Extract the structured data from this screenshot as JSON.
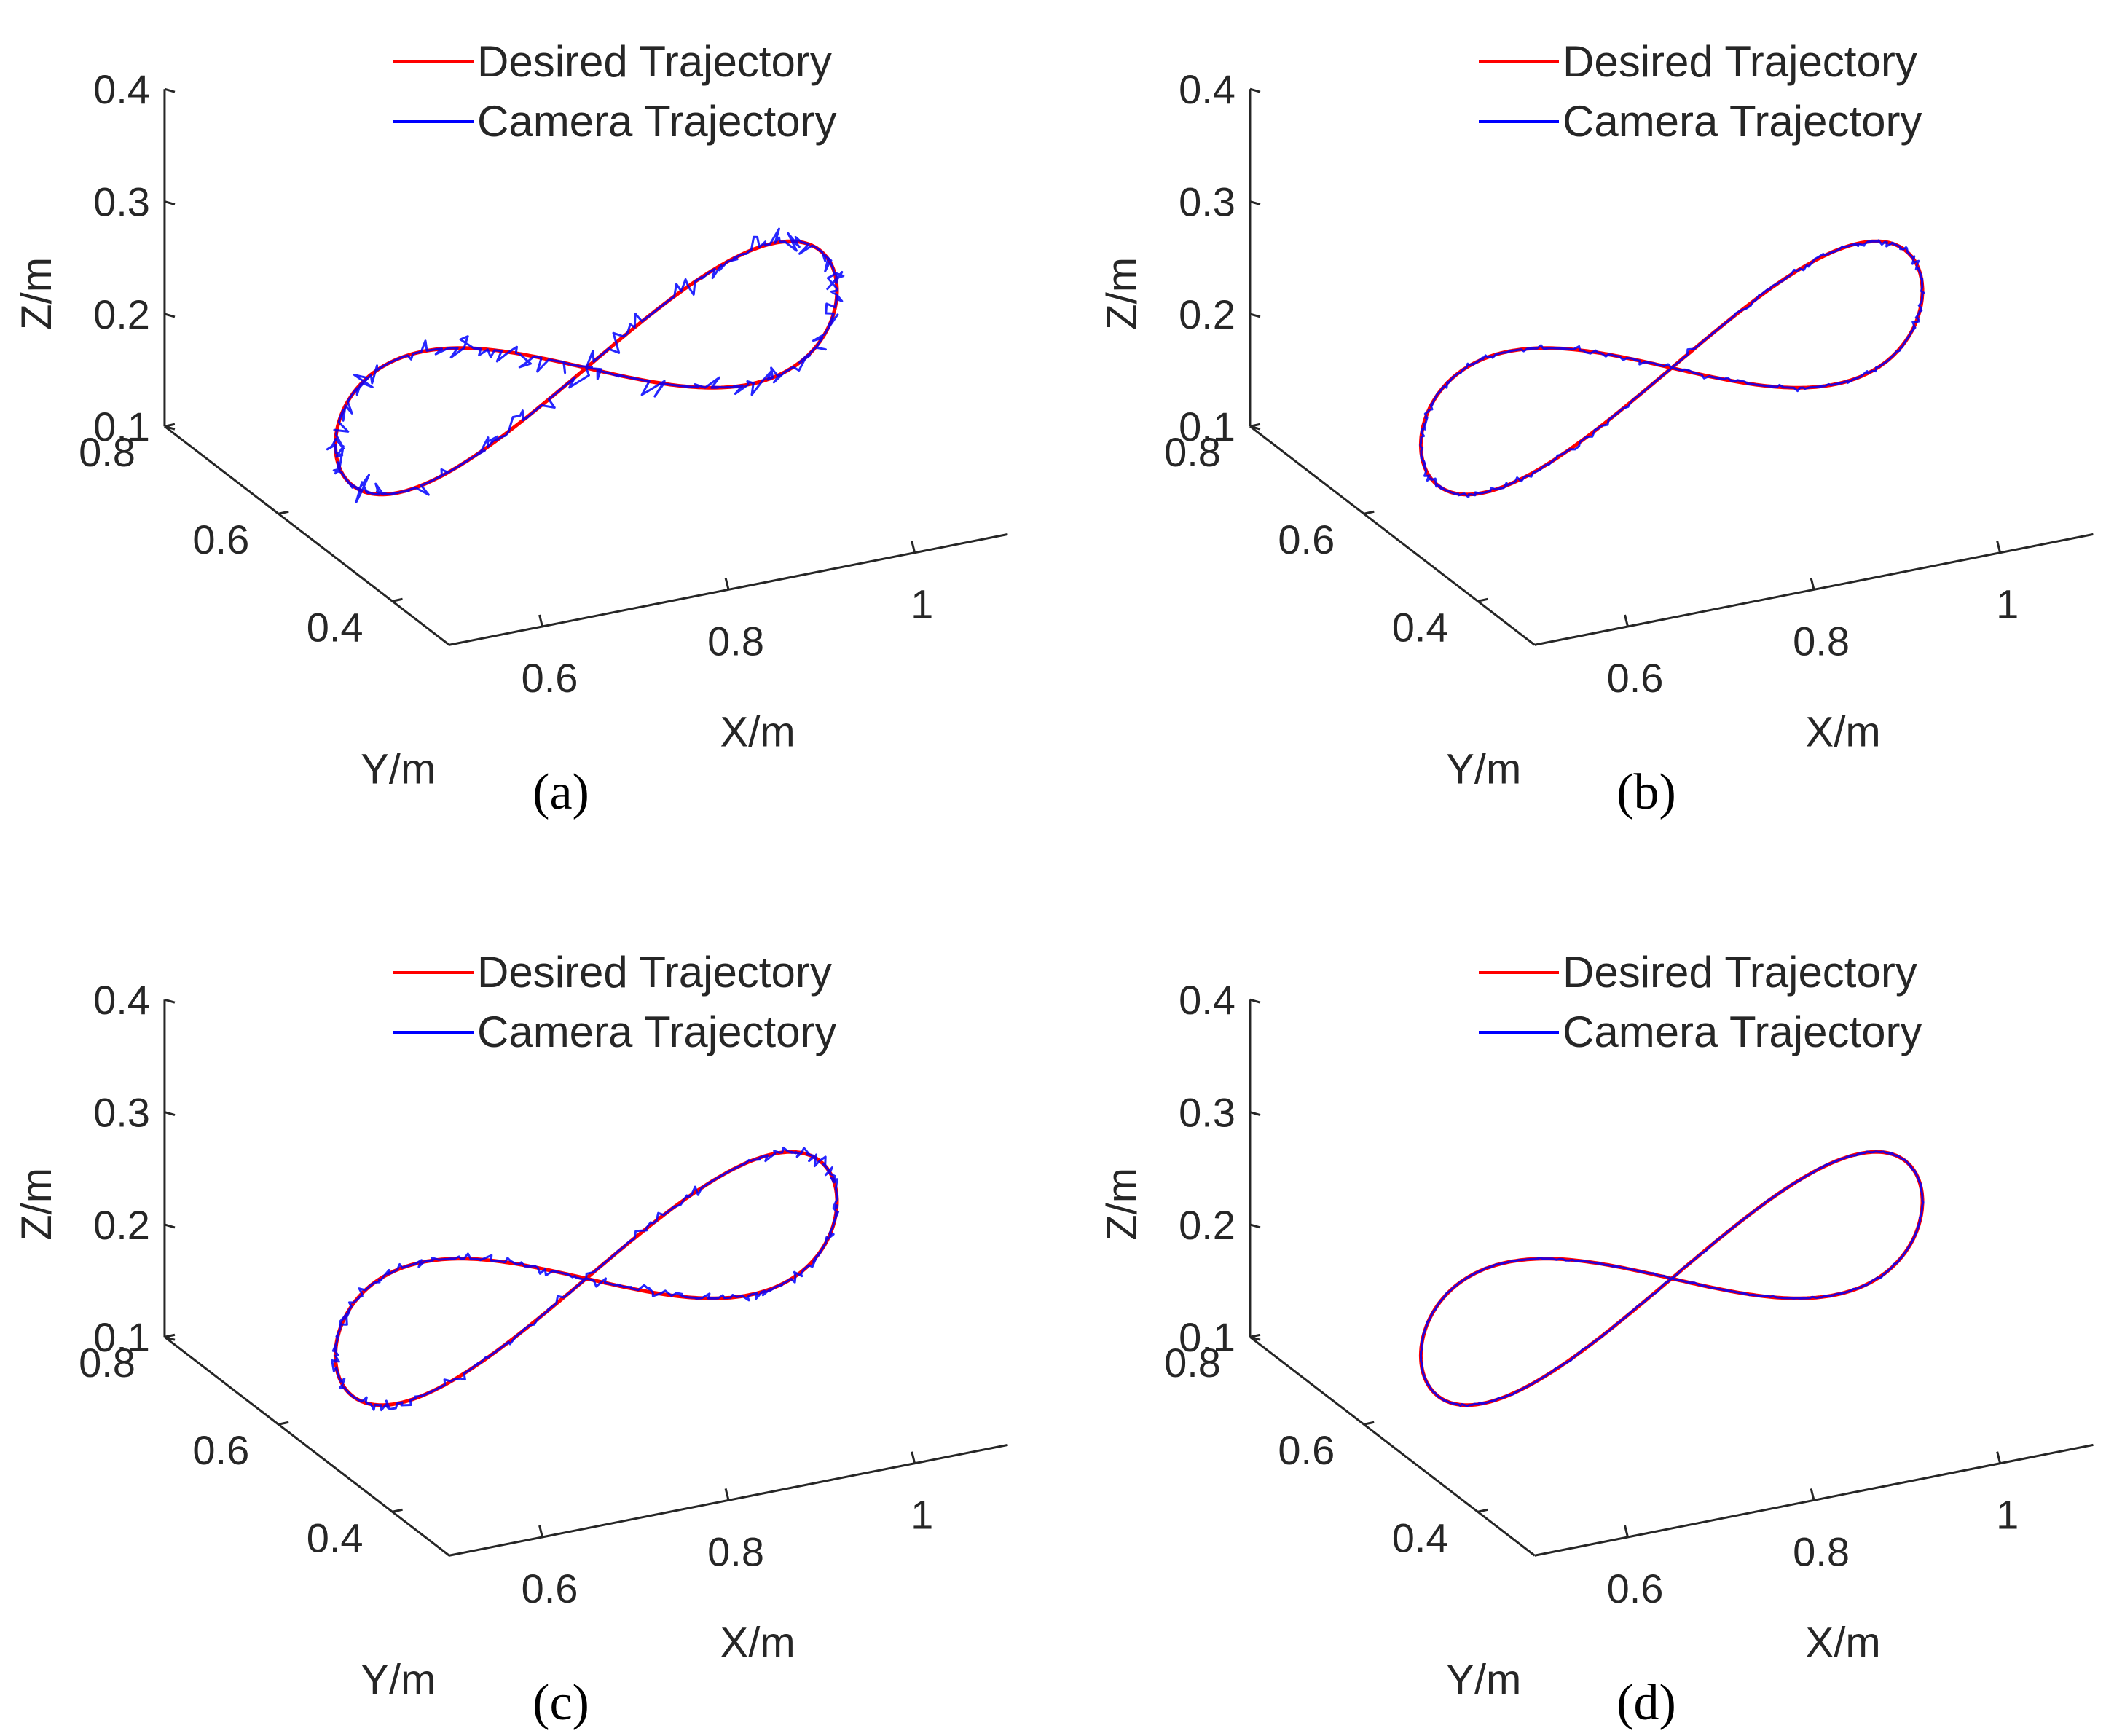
{
  "colors": {
    "desired": "#ff0000",
    "camera": "#0000ff",
    "axis": "#262626"
  },
  "chart_data": [
    {
      "type": "line3d",
      "caption": "(a)",
      "xlabel": "X/m",
      "ylabel": "Y/m",
      "zlabel": "Z/m",
      "xlim": [
        0.5,
        1.1
      ],
      "ylim": [
        0.3,
        0.8
      ],
      "zlim": [
        0.1,
        0.4
      ],
      "xticks": [
        "0.6",
        "0.8",
        "1"
      ],
      "yticks": [
        "0.4",
        "0.6",
        "0.8"
      ],
      "zticks": [
        "0.1",
        "0.2",
        "0.3",
        "0.4"
      ],
      "legend": [
        "Desired Trajectory",
        "Camera Trajectory"
      ],
      "legend_position": "top",
      "series": [
        {
          "name": "Desired Trajectory",
          "shape": "figure-eight",
          "center": [
            0.8,
            0.55,
            0.2
          ],
          "amplitude": [
            0.3,
            0.2,
            0.12
          ],
          "noise": 0
        },
        {
          "name": "Camera Trajectory",
          "shape": "figure-eight",
          "center": [
            0.8,
            0.55,
            0.2
          ],
          "amplitude": [
            0.3,
            0.2,
            0.12
          ],
          "noise": 0.012
        }
      ]
    },
    {
      "type": "line3d",
      "caption": "(b)",
      "xlabel": "X/m",
      "ylabel": "Y/m",
      "zlabel": "Z/m",
      "xlim": [
        0.5,
        1.1
      ],
      "ylim": [
        0.3,
        0.8
      ],
      "zlim": [
        0.1,
        0.4
      ],
      "xticks": [
        "0.6",
        "0.8",
        "1"
      ],
      "yticks": [
        "0.4",
        "0.6",
        "0.8"
      ],
      "zticks": [
        "0.1",
        "0.2",
        "0.3",
        "0.4"
      ],
      "legend": [
        "Desired Trajectory",
        "Camera Trajectory"
      ],
      "legend_position": "top",
      "series": [
        {
          "name": "Desired Trajectory",
          "shape": "figure-eight",
          "center": [
            0.8,
            0.55,
            0.2
          ],
          "amplitude": [
            0.3,
            0.2,
            0.12
          ],
          "noise": 0
        },
        {
          "name": "Camera Trajectory",
          "shape": "figure-eight",
          "center": [
            0.8,
            0.55,
            0.2
          ],
          "amplitude": [
            0.3,
            0.2,
            0.12
          ],
          "noise": 0.003
        }
      ]
    },
    {
      "type": "line3d",
      "caption": "(c)",
      "xlabel": "X/m",
      "ylabel": "Y/m",
      "zlabel": "Z/m",
      "xlim": [
        0.5,
        1.1
      ],
      "ylim": [
        0.3,
        0.8
      ],
      "zlim": [
        0.1,
        0.4
      ],
      "xticks": [
        "0.6",
        "0.8",
        "1"
      ],
      "yticks": [
        "0.4",
        "0.6",
        "0.8"
      ],
      "zticks": [
        "0.1",
        "0.2",
        "0.3",
        "0.4"
      ],
      "legend": [
        "Desired Trajectory",
        "Camera Trajectory"
      ],
      "legend_position": "top",
      "series": [
        {
          "name": "Desired Trajectory",
          "shape": "figure-eight",
          "center": [
            0.8,
            0.55,
            0.2
          ],
          "amplitude": [
            0.3,
            0.2,
            0.12
          ],
          "noise": 0
        },
        {
          "name": "Camera Trajectory",
          "shape": "figure-eight",
          "center": [
            0.8,
            0.55,
            0.2
          ],
          "amplitude": [
            0.3,
            0.2,
            0.12
          ],
          "noise": 0.005
        }
      ]
    },
    {
      "type": "line3d",
      "caption": "(d)",
      "xlabel": "X/m",
      "ylabel": "Y/m",
      "zlabel": "Z/m",
      "xlim": [
        0.5,
        1.1
      ],
      "ylim": [
        0.3,
        0.8
      ],
      "zlim": [
        0.1,
        0.4
      ],
      "xticks": [
        "0.6",
        "0.8",
        "1"
      ],
      "yticks": [
        "0.4",
        "0.6",
        "0.8"
      ],
      "zticks": [
        "0.1",
        "0.2",
        "0.3",
        "0.4"
      ],
      "legend": [
        "Desired Trajectory",
        "Camera Trajectory"
      ],
      "legend_position": "top",
      "series": [
        {
          "name": "Desired Trajectory",
          "shape": "figure-eight",
          "center": [
            0.8,
            0.55,
            0.2
          ],
          "amplitude": [
            0.3,
            0.2,
            0.12
          ],
          "noise": 0
        },
        {
          "name": "Camera Trajectory",
          "shape": "figure-eight",
          "center": [
            0.8,
            0.55,
            0.2
          ],
          "amplitude": [
            0.3,
            0.2,
            0.12
          ],
          "noise": 0.001
        }
      ]
    }
  ]
}
